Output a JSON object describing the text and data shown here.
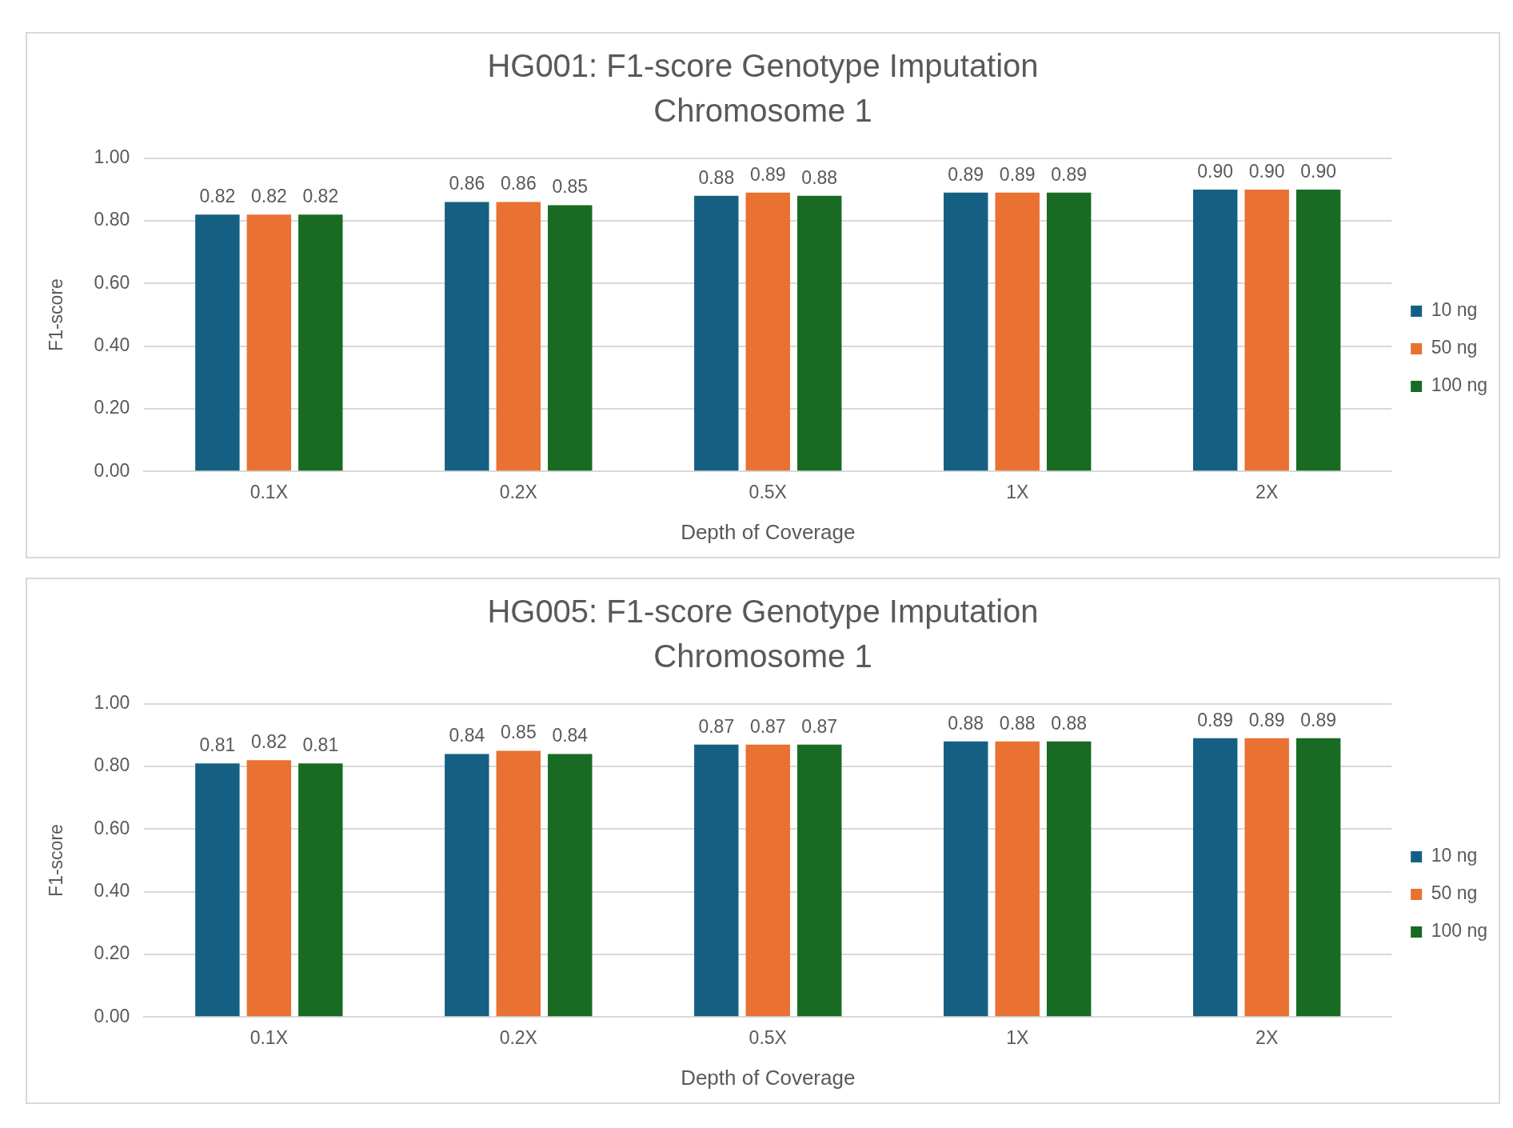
{
  "chart_data": [
    {
      "type": "bar",
      "title": "HG001: F1-score Genotype Imputation Chromosome 1",
      "xlabel": "Depth of Coverage",
      "ylabel": "F1-score",
      "categories": [
        "0.1X",
        "0.2X",
        "0.5X",
        "1X",
        "2X"
      ],
      "series": [
        {
          "name": "10 ng",
          "color": "#156082",
          "values": [
            0.82,
            0.86,
            0.88,
            0.89,
            0.9
          ],
          "value_labels": [
            "0.82",
            "0.86",
            "0.88",
            "0.89",
            "0.90"
          ]
        },
        {
          "name": "50 ng",
          "color": "#e97132",
          "values": [
            0.82,
            0.86,
            0.89,
            0.89,
            0.9
          ],
          "value_labels": [
            "0.82",
            "0.86",
            "0.89",
            "0.89",
            "0.90"
          ]
        },
        {
          "name": "100 ng",
          "color": "#196b24",
          "values": [
            0.82,
            0.85,
            0.88,
            0.89,
            0.9
          ],
          "value_labels": [
            "0.82",
            "0.85",
            "0.88",
            "0.89",
            "0.90"
          ]
        }
      ],
      "ylim": [
        0,
        1
      ],
      "yticks": [
        {
          "value": 0,
          "label": "0.00"
        },
        {
          "value": 0.2,
          "label": "0.20"
        },
        {
          "value": 0.4,
          "label": "0.40"
        },
        {
          "value": 0.6,
          "label": "0.60"
        },
        {
          "value": 0.8,
          "label": "0.80"
        },
        {
          "value": 1,
          "label": "1.00"
        }
      ],
      "grid": "y",
      "legend": "right"
    },
    {
      "type": "bar",
      "title": "HG005: F1-score Genotype Imputation Chromosome 1",
      "xlabel": "Depth of Coverage",
      "ylabel": "F1-score",
      "categories": [
        "0.1X",
        "0.2X",
        "0.5X",
        "1X",
        "2X"
      ],
      "series": [
        {
          "name": "10 ng",
          "color": "#156082",
          "values": [
            0.81,
            0.84,
            0.87,
            0.88,
            0.89
          ],
          "value_labels": [
            "0.81",
            "0.84",
            "0.87",
            "0.88",
            "0.89"
          ]
        },
        {
          "name": "50 ng",
          "color": "#e97132",
          "values": [
            0.82,
            0.85,
            0.87,
            0.88,
            0.89
          ],
          "value_labels": [
            "0.82",
            "0.85",
            "0.87",
            "0.88",
            "0.89"
          ]
        },
        {
          "name": "100 ng",
          "color": "#196b24",
          "values": [
            0.81,
            0.84,
            0.87,
            0.88,
            0.89
          ],
          "value_labels": [
            "0.81",
            "0.84",
            "0.87",
            "0.88",
            "0.89"
          ]
        }
      ],
      "ylim": [
        0,
        1
      ],
      "yticks": [
        {
          "value": 0,
          "label": "0.00"
        },
        {
          "value": 0.2,
          "label": "0.20"
        },
        {
          "value": 0.4,
          "label": "0.40"
        },
        {
          "value": 0.6,
          "label": "0.60"
        },
        {
          "value": 0.8,
          "label": "0.80"
        },
        {
          "value": 1,
          "label": "1.00"
        }
      ],
      "grid": "y",
      "legend": "right"
    }
  ]
}
